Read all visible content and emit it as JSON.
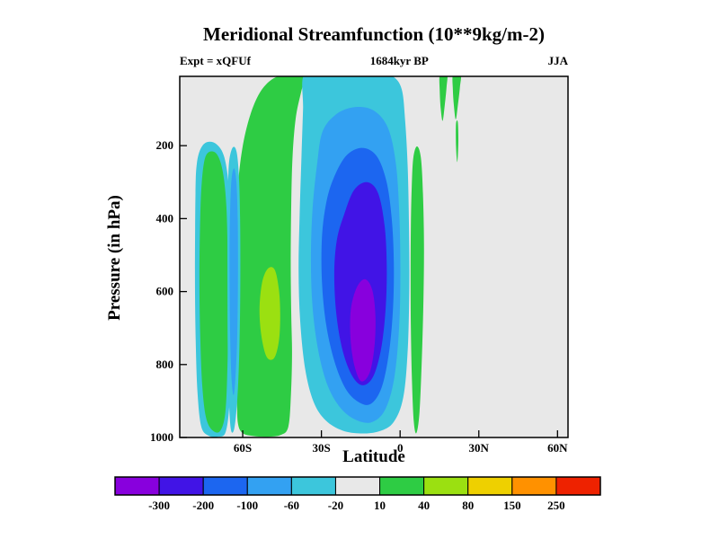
{
  "header": {
    "title": "Meridional Streamfunction (10**9kg/m-2)",
    "experiment": "Expt = xQFUf",
    "time": "1684kyr BP",
    "season": "JJA"
  },
  "axes": {
    "x_title": "Latitude",
    "y_title": "Pressure (in hPa)"
  },
  "chart_data": {
    "type": "contour",
    "title": "Meridional Streamfunction (10**9kg/m-2)",
    "units": "10**9 kg/m-2",
    "experiment": "xQFUf",
    "time": "1684kyr BP",
    "season": "JJA",
    "x_axis": {
      "label": "Latitude",
      "range": [
        -84,
        64
      ],
      "ticks": [
        {
          "value": -60,
          "label": "60S"
        },
        {
          "value": -30,
          "label": "30S"
        },
        {
          "value": 0,
          "label": "0"
        },
        {
          "value": 30,
          "label": "30N"
        },
        {
          "value": 60,
          "label": "60N"
        }
      ]
    },
    "y_axis": {
      "label": "Pressure (in hPa)",
      "range": [
        10,
        1000
      ],
      "orientation": "pressure increases downward",
      "ticks": [
        {
          "value": 200,
          "label": "200"
        },
        {
          "value": 400,
          "label": "400"
        },
        {
          "value": 600,
          "label": "600"
        },
        {
          "value": 800,
          "label": "800"
        },
        {
          "value": 1000,
          "label": "1000"
        }
      ]
    },
    "colorbar": {
      "levels": [
        -300,
        -200,
        -100,
        -60,
        -20,
        10,
        40,
        80,
        150,
        250
      ],
      "labels": [
        "-300",
        "-200",
        "-100",
        "-60",
        "-20",
        "10",
        "40",
        "80",
        "150",
        "250"
      ],
      "colors": [
        "#8800dd",
        "#4114e6",
        "#1c66f0",
        "#33a1f2",
        "#3cc6dc",
        "#e8e8e8",
        "#2ecc44",
        "#9be011",
        "#eed000",
        "#ff9100",
        "#ee2200"
      ],
      "background_band": [
        -20,
        10
      ]
    },
    "summary": {
      "min_cell": "negative overturning cell below -300 centered near 14S, 700 hPa",
      "max_cell": "positive band 40 to 80 centered near 50S, 650 hPa"
    },
    "regions": [
      {
        "name": "antarctic-band-cyan",
        "level_min": -60,
        "level_max": -20,
        "color": 4,
        "points": [
          [
            -78,
            330
          ],
          [
            -77.5,
            250
          ],
          [
            -76,
            208
          ],
          [
            -73.5,
            190
          ],
          [
            -70,
            196
          ],
          [
            -67,
            232
          ],
          [
            -65.2,
            320
          ],
          [
            -64.6,
            450
          ],
          [
            -64.4,
            600
          ],
          [
            -64.6,
            750
          ],
          [
            -65,
            900
          ],
          [
            -66.5,
            985
          ],
          [
            -69.5,
            998
          ],
          [
            -73,
            995
          ],
          [
            -75.8,
            970
          ],
          [
            -77.2,
            880
          ],
          [
            -77.9,
            740
          ],
          [
            -78.2,
            560
          ]
        ]
      },
      {
        "name": "antarctic-band-green",
        "level_min": 10,
        "level_max": 40,
        "color": 6,
        "points": [
          [
            -76.2,
            400
          ],
          [
            -75.6,
            300
          ],
          [
            -74.4,
            235
          ],
          [
            -72.3,
            216
          ],
          [
            -69.6,
            226
          ],
          [
            -67.5,
            275
          ],
          [
            -66.2,
            370
          ],
          [
            -65.7,
            520
          ],
          [
            -65.6,
            660
          ],
          [
            -65.8,
            800
          ],
          [
            -66.6,
            930
          ],
          [
            -68.6,
            982
          ],
          [
            -71.6,
            980
          ],
          [
            -74,
            945
          ],
          [
            -75.4,
            860
          ],
          [
            -76.2,
            720
          ],
          [
            -76.5,
            560
          ]
        ]
      },
      {
        "name": "main-green-band",
        "level_min": 10,
        "level_max": 40,
        "color": 6,
        "points": [
          [
            -62.2,
            900
          ],
          [
            -62.7,
            780
          ],
          [
            -63,
            620
          ],
          [
            -62.7,
            460
          ],
          [
            -61.9,
            320
          ],
          [
            -60.2,
            210
          ],
          [
            -57.3,
            120
          ],
          [
            -53.5,
            55
          ],
          [
            -48.8,
            18
          ],
          [
            -43.5,
            5
          ],
          [
            -37.5,
            4
          ],
          [
            -36.2,
            10
          ],
          [
            -37.8,
            55
          ],
          [
            -39.8,
            125
          ],
          [
            -41,
            230
          ],
          [
            -41.5,
            360
          ],
          [
            -41.7,
            520
          ],
          [
            -41.5,
            660
          ],
          [
            -41.2,
            770
          ],
          [
            -41.6,
            880
          ],
          [
            -42.6,
            970
          ],
          [
            -45.5,
            993
          ],
          [
            -50.5,
            998
          ],
          [
            -56,
            996
          ],
          [
            -60,
            988
          ],
          [
            -61.8,
            962
          ]
        ]
      },
      {
        "name": "subpolar-strip-cyan",
        "level_min": -60,
        "level_max": -20,
        "color": 4,
        "points": [
          [
            -65.6,
            330
          ],
          [
            -65.2,
            245
          ],
          [
            -63.8,
            205
          ],
          [
            -62.3,
            218
          ],
          [
            -61.4,
            290
          ],
          [
            -61,
            400
          ],
          [
            -60.9,
            520
          ],
          [
            -61,
            650
          ],
          [
            -61.4,
            790
          ],
          [
            -62.1,
            900
          ],
          [
            -63.2,
            975
          ],
          [
            -64.5,
            978
          ],
          [
            -65.3,
            890
          ],
          [
            -65.7,
            760
          ],
          [
            -65.8,
            620
          ],
          [
            -65.8,
            470
          ]
        ]
      },
      {
        "name": "subpolar-strip-blue",
        "level_min": -100,
        "level_max": -60,
        "color": 3,
        "points": [
          [
            -64.8,
            380
          ],
          [
            -64.3,
            295
          ],
          [
            -63.3,
            262
          ],
          [
            -62.4,
            300
          ],
          [
            -61.9,
            400
          ],
          [
            -61.8,
            520
          ],
          [
            -61.9,
            640
          ],
          [
            -62.3,
            770
          ],
          [
            -63.3,
            880
          ],
          [
            -64.2,
            845
          ],
          [
            -64.8,
            720
          ],
          [
            -65,
            580
          ],
          [
            -65,
            470
          ]
        ]
      },
      {
        "name": "green-band-core-yellowgreen",
        "level_min": 40,
        "level_max": 80,
        "color": 7,
        "points": [
          [
            -53.6,
            650
          ],
          [
            -52.6,
            575
          ],
          [
            -50.4,
            537
          ],
          [
            -47.8,
            540
          ],
          [
            -46.2,
            595
          ],
          [
            -45.7,
            665
          ],
          [
            -46.2,
            735
          ],
          [
            -48,
            782
          ],
          [
            -50.8,
            780
          ],
          [
            -52.8,
            725
          ]
        ]
      },
      {
        "name": "hadley-cell-cyan",
        "level_min": -60,
        "level_max": -20,
        "color": 4,
        "points": [
          [
            -36.6,
            6
          ],
          [
            -28,
            2
          ],
          [
            -18,
            2
          ],
          [
            -8,
            3
          ],
          [
            -2.8,
            10
          ],
          [
            0.6,
            45
          ],
          [
            1.9,
            130
          ],
          [
            2.9,
            260
          ],
          [
            3.4,
            430
          ],
          [
            3.5,
            590
          ],
          [
            2.9,
            760
          ],
          [
            1.2,
            890
          ],
          [
            -2.5,
            958
          ],
          [
            -8,
            983
          ],
          [
            -15,
            989
          ],
          [
            -22,
            981
          ],
          [
            -28.4,
            953
          ],
          [
            -33,
            902
          ],
          [
            -36.2,
            812
          ],
          [
            -38.1,
            680
          ],
          [
            -38.7,
            540
          ],
          [
            -38.3,
            390
          ],
          [
            -37.6,
            230
          ],
          [
            -37,
            100
          ]
        ]
      },
      {
        "name": "hadley-cell-lightblue",
        "level_min": -100,
        "level_max": -60,
        "color": 3,
        "points": [
          [
            -29.5,
            160
          ],
          [
            -24,
            112
          ],
          [
            -17,
            94
          ],
          [
            -10,
            104
          ],
          [
            -4.6,
            152
          ],
          [
            -1.6,
            250
          ],
          [
            -0.3,
            390
          ],
          [
            0.1,
            550
          ],
          [
            -0.4,
            700
          ],
          [
            -2.3,
            840
          ],
          [
            -5.8,
            925
          ],
          [
            -10.8,
            958
          ],
          [
            -16.8,
            952
          ],
          [
            -22.6,
            920
          ],
          [
            -27.6,
            858
          ],
          [
            -31.2,
            762
          ],
          [
            -33.4,
            640
          ],
          [
            -34,
            510
          ],
          [
            -33.4,
            376
          ],
          [
            -31.6,
            248
          ]
        ]
      },
      {
        "name": "hadley-cell-blue",
        "level_min": -200,
        "level_max": -100,
        "color": 2,
        "points": [
          [
            -25.4,
            290
          ],
          [
            -20.6,
            228
          ],
          [
            -14.6,
            206
          ],
          [
            -9,
            228
          ],
          [
            -5.2,
            298
          ],
          [
            -3.2,
            400
          ],
          [
            -2.4,
            520
          ],
          [
            -2.7,
            645
          ],
          [
            -4.2,
            765
          ],
          [
            -7,
            862
          ],
          [
            -11.2,
            908
          ],
          [
            -16,
            902
          ],
          [
            -20.8,
            866
          ],
          [
            -25,
            792
          ],
          [
            -28.2,
            690
          ],
          [
            -29.8,
            572
          ],
          [
            -29.8,
            452
          ],
          [
            -28.2,
            358
          ]
        ]
      },
      {
        "name": "hadley-cell-indigo",
        "level_min": -300,
        "level_max": -200,
        "color": 1,
        "points": [
          [
            -21.4,
            390
          ],
          [
            -17.6,
            322
          ],
          [
            -12.6,
            300
          ],
          [
            -8.4,
            330
          ],
          [
            -5.9,
            420
          ],
          [
            -5.1,
            530
          ],
          [
            -5.5,
            645
          ],
          [
            -7.2,
            755
          ],
          [
            -10.2,
            832
          ],
          [
            -14.2,
            857
          ],
          [
            -18.2,
            832
          ],
          [
            -21.9,
            762
          ],
          [
            -24.3,
            662
          ],
          [
            -25.1,
            550
          ],
          [
            -24.1,
            458
          ]
        ]
      },
      {
        "name": "hadley-cell-violet",
        "level_min": -400,
        "level_max": -300,
        "color": 0,
        "points": [
          [
            -18.8,
            650
          ],
          [
            -16.6,
            590
          ],
          [
            -13.4,
            566
          ],
          [
            -10.6,
            596
          ],
          [
            -9.4,
            668
          ],
          [
            -9.8,
            752
          ],
          [
            -11.6,
            822
          ],
          [
            -14.8,
            846
          ],
          [
            -17.4,
            804
          ],
          [
            -18.9,
            730
          ]
        ]
      },
      {
        "name": "tropical-north-stripe-green",
        "level_min": 10,
        "level_max": 40,
        "color": 6,
        "points": [
          [
            4.4,
            320
          ],
          [
            5,
            235
          ],
          [
            6.4,
            202
          ],
          [
            7.9,
            232
          ],
          [
            8.7,
            330
          ],
          [
            9.1,
            470
          ],
          [
            8.9,
            620
          ],
          [
            8.3,
            780
          ],
          [
            7.4,
            930
          ],
          [
            6.2,
            988
          ],
          [
            5.2,
            955
          ],
          [
            4.5,
            840
          ],
          [
            4.1,
            700
          ],
          [
            4,
            550
          ],
          [
            4.1,
            420
          ]
        ]
      },
      {
        "name": "north-top-blob-a",
        "level_min": 10,
        "level_max": 40,
        "color": 6,
        "points": [
          [
            15.2,
            4
          ],
          [
            17.9,
            3
          ],
          [
            17.7,
            40
          ],
          [
            17,
            90
          ],
          [
            16.2,
            132
          ],
          [
            15.5,
            100
          ],
          [
            15.1,
            50
          ]
        ]
      },
      {
        "name": "north-top-blob-b",
        "level_min": 10,
        "level_max": 40,
        "color": 6,
        "points": [
          [
            20.2,
            4
          ],
          [
            23.1,
            3
          ],
          [
            22.8,
            40
          ],
          [
            22,
            90
          ],
          [
            21.2,
            128
          ],
          [
            20.5,
            90
          ],
          [
            20.1,
            45
          ]
        ]
      },
      {
        "name": "north-top-blob-b-tail",
        "level_min": 10,
        "level_max": 40,
        "color": 6,
        "points": [
          [
            21.3,
            140
          ],
          [
            22,
            136
          ],
          [
            22.2,
            190
          ],
          [
            21.8,
            245
          ],
          [
            21.3,
            200
          ]
        ]
      }
    ]
  }
}
